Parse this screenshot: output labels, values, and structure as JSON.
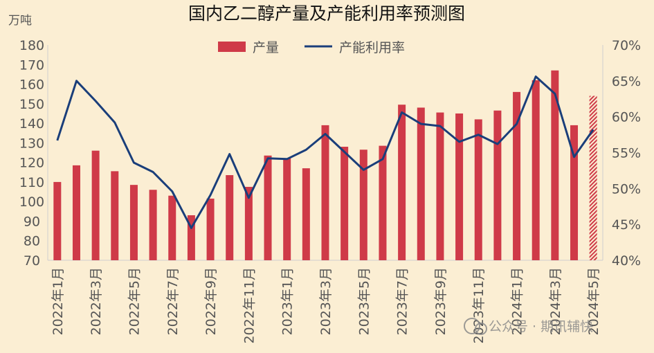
{
  "chart_data": {
    "type": "bar+line",
    "title": "国内乙二醇产量及产能利用率预测图",
    "ylabel_left": "万吨",
    "left_axis": {
      "min": 70,
      "max": 180,
      "step": 10
    },
    "right_axis": {
      "min": 40,
      "max": 70,
      "step": 5,
      "suffix": "%"
    },
    "legend": [
      "产量",
      "产能利用率"
    ],
    "legend_position": "top",
    "categories": [
      "2022年1月",
      "2022年2月",
      "2022年3月",
      "2022年4月",
      "2022年5月",
      "2022年6月",
      "2022年7月",
      "2022年8月",
      "2022年9月",
      "2022年10月",
      "2022年11月",
      "2022年12月",
      "2023年1月",
      "2023年2月",
      "2023年3月",
      "2023年4月",
      "2023年5月",
      "2023年6月",
      "2023年7月",
      "2023年8月",
      "2023年9月",
      "2023年10月",
      "2023年11月",
      "2023年12月",
      "2024年1月",
      "2024年2月",
      "2024年3月",
      "2024年4月",
      "2024年5月"
    ],
    "xtick_labels": [
      "2022年1月",
      "2022年3月",
      "2022年5月",
      "2022年7月",
      "2022年9月",
      "2022年11月",
      "2023年1月",
      "2023年3月",
      "2023年5月",
      "2023年7月",
      "2023年9月",
      "2023年11月",
      "2024年1月",
      "2024年3月",
      "2024年5月"
    ],
    "series": [
      {
        "name": "产量",
        "kind": "bar",
        "color": "#cf3a48",
        "values": [
          110,
          118.5,
          126,
          115.5,
          108.5,
          106,
          103,
          93,
          101.5,
          113.5,
          107.5,
          123.5,
          122,
          117,
          139,
          128,
          126.5,
          128.5,
          149.5,
          148,
          145.5,
          145,
          142,
          146.5,
          156,
          162,
          167,
          139,
          154
        ],
        "forecast_index": 28
      },
      {
        "name": "产能利用率",
        "kind": "line",
        "color": "#1a3e7a",
        "values": [
          56.7,
          65,
          62.2,
          59.2,
          53.6,
          52.3,
          49.6,
          44.5,
          49.1,
          54.8,
          48.7,
          54.2,
          54.1,
          55.4,
          57.6,
          55.1,
          52.6,
          54.1,
          60.6,
          59,
          58.7,
          56.5,
          57.5,
          56.2,
          59,
          65.6,
          63.2,
          54.4,
          58.2
        ]
      }
    ],
    "watermark": "公众号 · 期讯辅快"
  }
}
